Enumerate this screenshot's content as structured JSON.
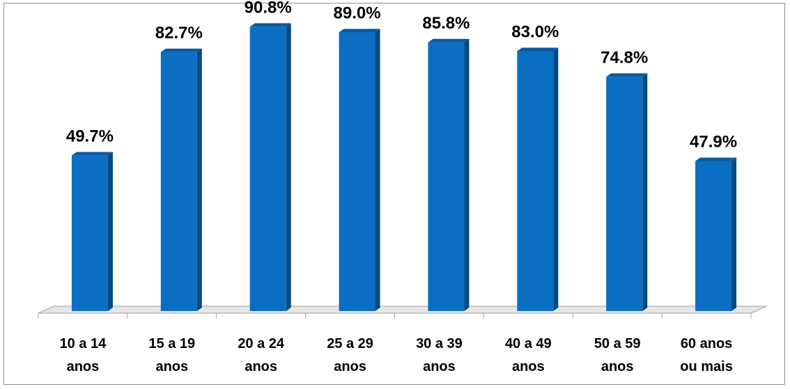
{
  "chart_data": {
    "type": "bar",
    "title": "",
    "xlabel": "",
    "ylabel": "",
    "categories": [
      [
        "10 a 14",
        "anos"
      ],
      [
        "15 a 19",
        "anos"
      ],
      [
        "20 a 24",
        "anos"
      ],
      [
        "25 a 29",
        "anos"
      ],
      [
        "30 a 39",
        "anos"
      ],
      [
        "40 a 49",
        "anos"
      ],
      [
        "50 a 59",
        "anos"
      ],
      [
        "60 anos",
        "ou mais"
      ]
    ],
    "values": [
      49.7,
      82.7,
      90.8,
      89.0,
      85.8,
      83.0,
      74.8,
      47.9
    ],
    "value_labels": [
      "49.7%",
      "82.7%",
      "90.8%",
      "89.0%",
      "85.8%",
      "83.0%",
      "74.8%",
      "47.9%"
    ],
    "ylim": [
      0,
      100
    ],
    "grid": false,
    "legend": "none",
    "colors": {
      "bar_front": "#0a6fc2",
      "bar_side": "#07487f",
      "bar_top": "#0c5a9e",
      "floor": "#e6e6e6",
      "floor_edge": "#a0a0a0"
    }
  }
}
